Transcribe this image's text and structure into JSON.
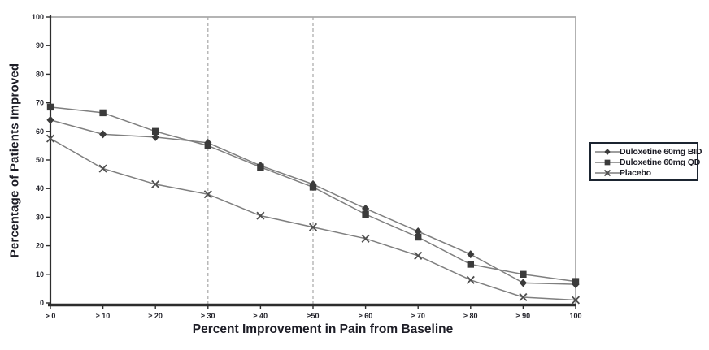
{
  "chart_data": {
    "type": "line",
    "title": "",
    "xlabel": "Percent Improvement in Pain from Baseline",
    "ylabel": "Percentage of Patients Improved",
    "categories": [
      "> 0",
      "≥ 10",
      "≥ 20",
      "≥ 30",
      "≥ 40",
      "≥50",
      "≥ 60",
      "≥ 70",
      "≥ 80",
      "≥ 90",
      "100"
    ],
    "ylim": [
      0,
      100
    ],
    "yticks": [
      0,
      10,
      20,
      30,
      40,
      50,
      60,
      70,
      80,
      90,
      100
    ],
    "grid": "vertical-dashed-only",
    "dashed_gridlines_at": [
      "≥ 30",
      "≥50"
    ],
    "legend_position": "right-outside",
    "series": [
      {
        "name": "Duloxetine 60mg BID",
        "marker": "diamond",
        "values": [
          64,
          59,
          58,
          56,
          48,
          41.5,
          33,
          25,
          17,
          7,
          6.5
        ]
      },
      {
        "name": "Duloxetine 60mg QD",
        "marker": "square",
        "values": [
          68.5,
          66.5,
          60,
          55,
          47.5,
          40.5,
          31,
          23,
          13.5,
          10,
          7.5
        ]
      },
      {
        "name": "Placebo",
        "marker": "x",
        "values": [
          57.5,
          47,
          41.5,
          38,
          30.5,
          26.5,
          22.5,
          16.5,
          8,
          2,
          1
        ]
      }
    ],
    "colors": {
      "line": "#7f7f7f",
      "marker": "#3b3b3b",
      "x_marker": "#4f4f4f",
      "axis": "#2d2d2d",
      "box_border": "#a9a9a9",
      "gridline": "#a8a8a8",
      "text": "#23232b",
      "legend_border": "#1b2430",
      "background": "#ffffff"
    }
  }
}
